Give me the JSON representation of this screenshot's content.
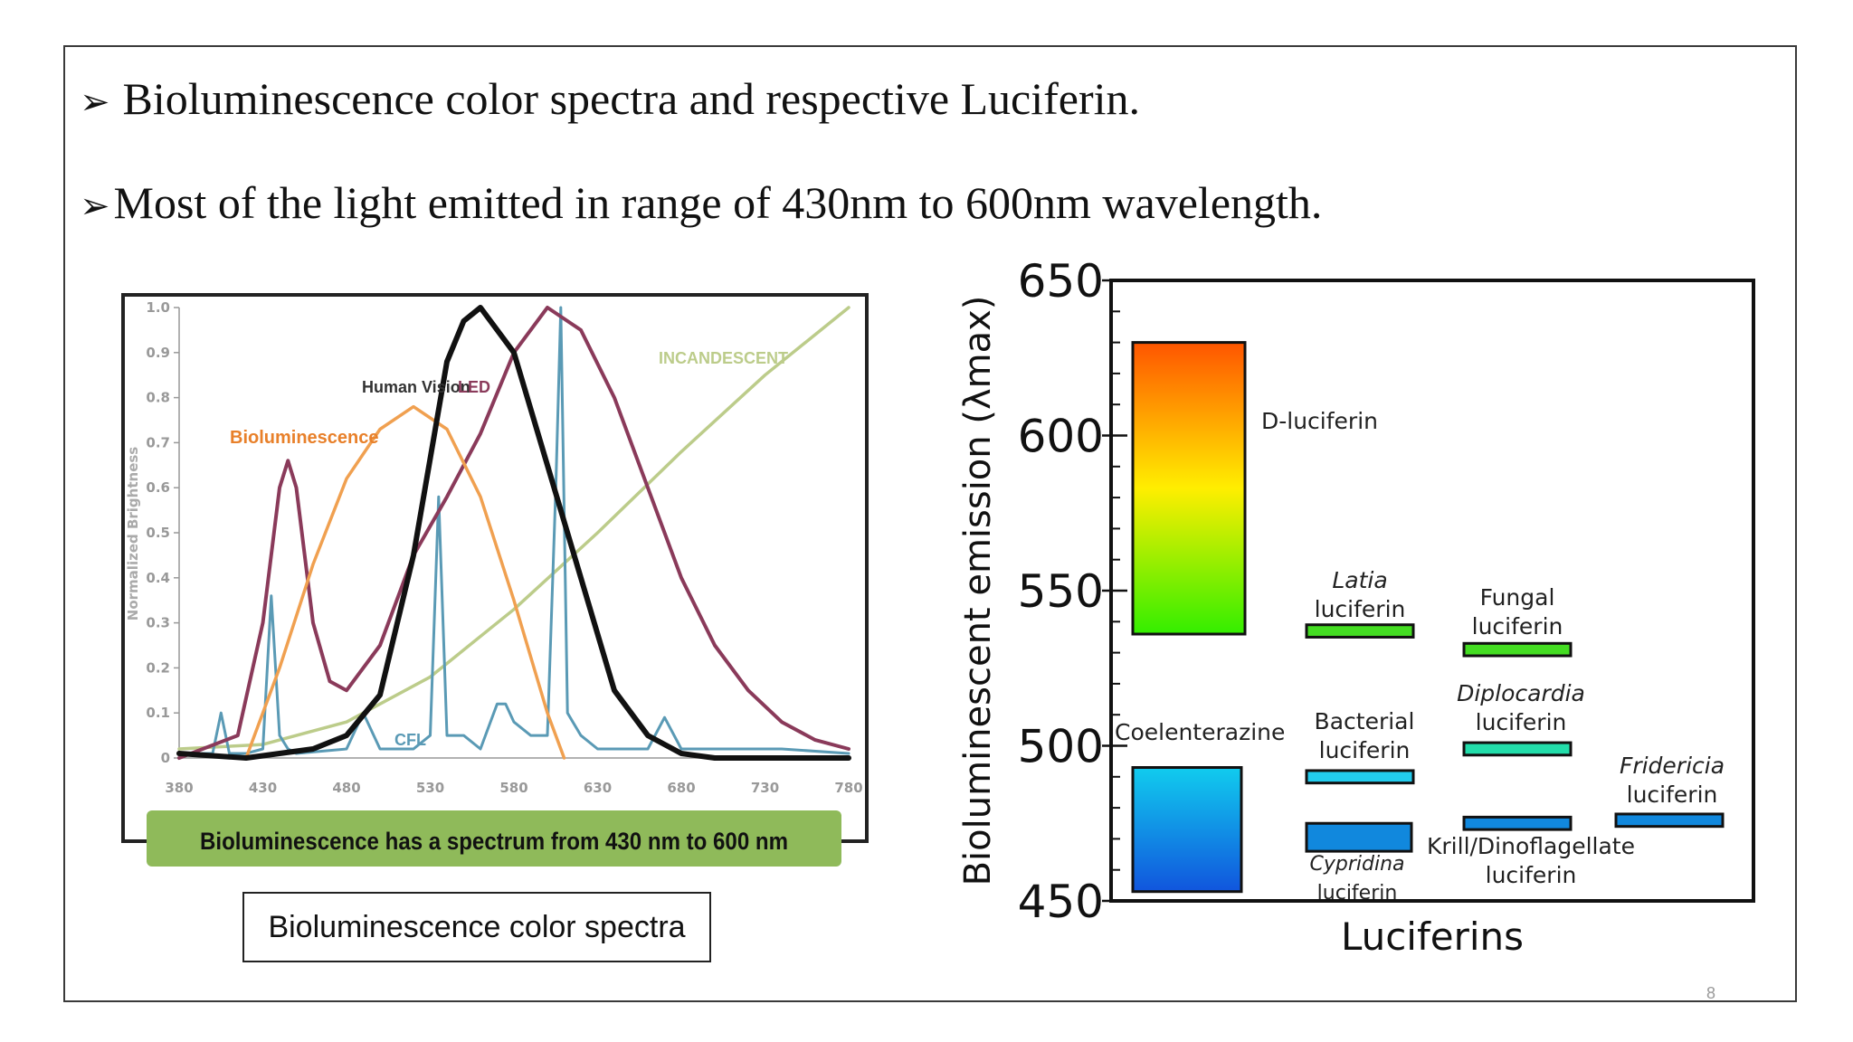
{
  "slide": {
    "bullet_mark": "➢",
    "bullets": [
      "Bioluminescence color spectra and respective Luciferin.",
      "Most of the light emitted in range of 430nm to 600nm wavelength."
    ],
    "caption": "Bioluminescence color spectra",
    "page_number": "8"
  },
  "chart_data": [
    {
      "type": "line",
      "title": "",
      "ylabel": "Normalized Brightness",
      "xlabel": "",
      "xlim": [
        380,
        780
      ],
      "ylim": [
        0,
        1.0
      ],
      "x_ticks": [
        380,
        430,
        480,
        530,
        580,
        630,
        680,
        730,
        780
      ],
      "y_ticks": [
        "0",
        "0.1",
        "0.2",
        "0.3",
        "0.4",
        "0.5",
        "0.6",
        "0.7",
        "0.8",
        "0.9",
        "1.0"
      ],
      "banner": "Bioluminescence has a spectrum from 430 nm to 600 nm",
      "series": [
        {
          "name": "Bioluminescence",
          "color": "#f0a050",
          "x": [
            420,
            440,
            460,
            480,
            500,
            520,
            540,
            560,
            580,
            600,
            610
          ],
          "y": [
            0.0,
            0.2,
            0.43,
            0.62,
            0.73,
            0.78,
            0.73,
            0.58,
            0.35,
            0.1,
            0.0
          ]
        },
        {
          "name": "Human Vision",
          "color": "#111111",
          "x": [
            380,
            420,
            460,
            480,
            500,
            520,
            540,
            550,
            560,
            580,
            600,
            620,
            640,
            660,
            680,
            700,
            720,
            780
          ],
          "y": [
            0.01,
            0.0,
            0.02,
            0.05,
            0.14,
            0.45,
            0.88,
            0.97,
            1.0,
            0.9,
            0.65,
            0.4,
            0.15,
            0.05,
            0.01,
            0.0,
            0.0,
            0.0
          ]
        },
        {
          "name": "LED",
          "color": "#8a3a5a",
          "x": [
            380,
            415,
            430,
            440,
            445,
            450,
            460,
            470,
            480,
            500,
            520,
            540,
            560,
            580,
            600,
            620,
            640,
            660,
            680,
            700,
            720,
            740,
            760,
            780
          ],
          "y": [
            0.0,
            0.05,
            0.3,
            0.6,
            0.66,
            0.6,
            0.3,
            0.17,
            0.15,
            0.25,
            0.45,
            0.58,
            0.72,
            0.9,
            1.0,
            0.95,
            0.8,
            0.6,
            0.4,
            0.25,
            0.15,
            0.08,
            0.04,
            0.02
          ]
        },
        {
          "name": "INCANDESCENT",
          "color": "#bccc8a",
          "x": [
            380,
            430,
            480,
            530,
            580,
            630,
            680,
            730,
            780
          ],
          "y": [
            0.02,
            0.03,
            0.08,
            0.18,
            0.33,
            0.5,
            0.68,
            0.85,
            1.0
          ]
        },
        {
          "name": "CFL",
          "color": "#5a9ab5",
          "x": [
            380,
            400,
            405,
            410,
            420,
            430,
            435,
            440,
            445,
            450,
            480,
            490,
            500,
            520,
            530,
            535,
            540,
            550,
            560,
            570,
            575,
            580,
            590,
            600,
            605,
            608,
            612,
            620,
            630,
            660,
            670,
            680,
            700,
            720,
            740,
            780
          ],
          "y": [
            0.01,
            0.01,
            0.1,
            0.01,
            0.01,
            0.02,
            0.36,
            0.05,
            0.02,
            0.01,
            0.02,
            0.1,
            0.02,
            0.02,
            0.05,
            0.58,
            0.05,
            0.05,
            0.02,
            0.12,
            0.12,
            0.08,
            0.05,
            0.05,
            0.6,
            1.0,
            0.1,
            0.05,
            0.02,
            0.02,
            0.09,
            0.02,
            0.02,
            0.02,
            0.02,
            0.01
          ]
        }
      ],
      "annotations": [
        "Bioluminescence",
        "Human Vision",
        "LED",
        "INCANDESCENT",
        "CFL"
      ]
    },
    {
      "type": "bar",
      "title": "",
      "xlabel": "Luciferins",
      "ylabel": "Bioluminescent emission (λmax)",
      "ylim": [
        450,
        650
      ],
      "y_ticks": [
        450,
        500,
        550,
        600,
        650
      ],
      "luciferins": [
        {
          "lines": [
            "D-luciferin"
          ],
          "italic_line": null,
          "low": 536,
          "high": 630,
          "gradient": [
            "#33ee00",
            "#ffee00",
            "#ff5500"
          ]
        },
        {
          "lines": [
            "Coelenterazine"
          ],
          "italic_line": null,
          "low": 453,
          "high": 493,
          "gradient": [
            "#1155dd",
            "#11ccee"
          ]
        },
        {
          "lines": [
            "Latia",
            "luciferin"
          ],
          "italic_line": 0,
          "low": 535,
          "high": 539,
          "color": "#44dd22"
        },
        {
          "lines": [
            "Bacterial",
            "luciferin"
          ],
          "italic_line": null,
          "low": 488,
          "high": 492,
          "color": "#22ccee"
        },
        {
          "lines": [
            "Cypridina",
            "luciferin"
          ],
          "italic_line": 0,
          "low": 466,
          "high": 475,
          "color": "#1188dd"
        },
        {
          "lines": [
            "Fungal",
            "luciferin"
          ],
          "italic_line": null,
          "low": 529,
          "high": 533,
          "color": "#44dd22"
        },
        {
          "lines": [
            "Diplocardia",
            "luciferin"
          ],
          "italic_line": 0,
          "low": 497,
          "high": 501,
          "color": "#22ddaa"
        },
        {
          "lines": [
            "Krill/Dinoflagellate",
            "luciferin"
          ],
          "italic_line": null,
          "low": 473,
          "high": 477,
          "color": "#1188dd"
        },
        {
          "lines": [
            "Fridericia",
            "luciferin"
          ],
          "italic_line": 0,
          "low": 474,
          "high": 478,
          "color": "#1188dd"
        }
      ]
    }
  ]
}
